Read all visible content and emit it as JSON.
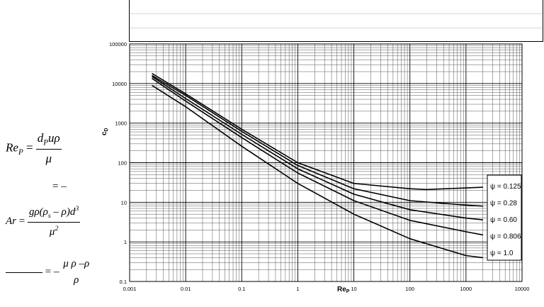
{
  "chart_data": {
    "type": "line",
    "title": "",
    "xlabel": "Re",
    "xlabel_sub": "P",
    "ylabel": "c",
    "ylabel_sub": "D",
    "x_scale": "log",
    "y_scale": "log",
    "xlim": [
      0.001,
      10000
    ],
    "ylim": [
      0.1,
      100000
    ],
    "grid": true,
    "legend_position": "right",
    "x_ticks": [
      "0.001",
      "0.01",
      "0.1",
      "1",
      "10",
      "100",
      "1000",
      "10000"
    ],
    "y_ticks": [
      "100000",
      "10000",
      "1000",
      "100",
      "10",
      "1",
      "0.1"
    ],
    "series": [
      {
        "name": "ψ = 0.125",
        "x": [
          0.0025,
          0.01,
          0.1,
          1,
          10,
          100,
          200,
          1000,
          2000
        ],
        "y": [
          18000,
          5500,
          700,
          100,
          30,
          22,
          21,
          23,
          24
        ]
      },
      {
        "name": "ψ = 0.28",
        "x": [
          0.0025,
          0.01,
          0.1,
          1,
          10,
          100,
          1000,
          2000
        ],
        "y": [
          16000,
          5000,
          620,
          85,
          22,
          11,
          8.5,
          8
        ]
      },
      {
        "name": "ψ = 0.60",
        "x": [
          0.0025,
          0.01,
          0.1,
          1,
          10,
          100,
          1000,
          2000
        ],
        "y": [
          15000,
          4200,
          520,
          70,
          16,
          6.5,
          4,
          3.6
        ]
      },
      {
        "name": "ψ = 0.806",
        "x": [
          0.0025,
          0.01,
          0.1,
          1,
          10,
          100,
          1000,
          2000
        ],
        "y": [
          13500,
          3600,
          430,
          55,
          11,
          3.5,
          1.8,
          1.5
        ]
      },
      {
        "name": "ψ = 1.0",
        "x": [
          0.0025,
          0.01,
          0.1,
          1,
          10,
          100,
          1000,
          2000
        ],
        "y": [
          9000,
          2600,
          260,
          30,
          5,
          1.2,
          0.45,
          0.4
        ]
      }
    ]
  },
  "equations": {
    "rep_lhs": "Re",
    "rep_lhs_sub": "P",
    "rep_eq": " = ",
    "rep_num": "d",
    "rep_num_sub": "P",
    "rep_num_rest": "uρ",
    "rep_den": "μ",
    "rep_line2": "= –",
    "ar_lhs": "Ar",
    "ar_eq": " = ",
    "ar_num": "gρ(ρ",
    "ar_num_sub": "s",
    "ar_num_rest": " – ρ)d",
    "ar_num_sup": "3",
    "ar_den": "μ",
    "ar_den_sup": "2",
    "last_lhs": "= –",
    "last_num": "μ  ρ  –ρ",
    "last_den": "ρ"
  }
}
